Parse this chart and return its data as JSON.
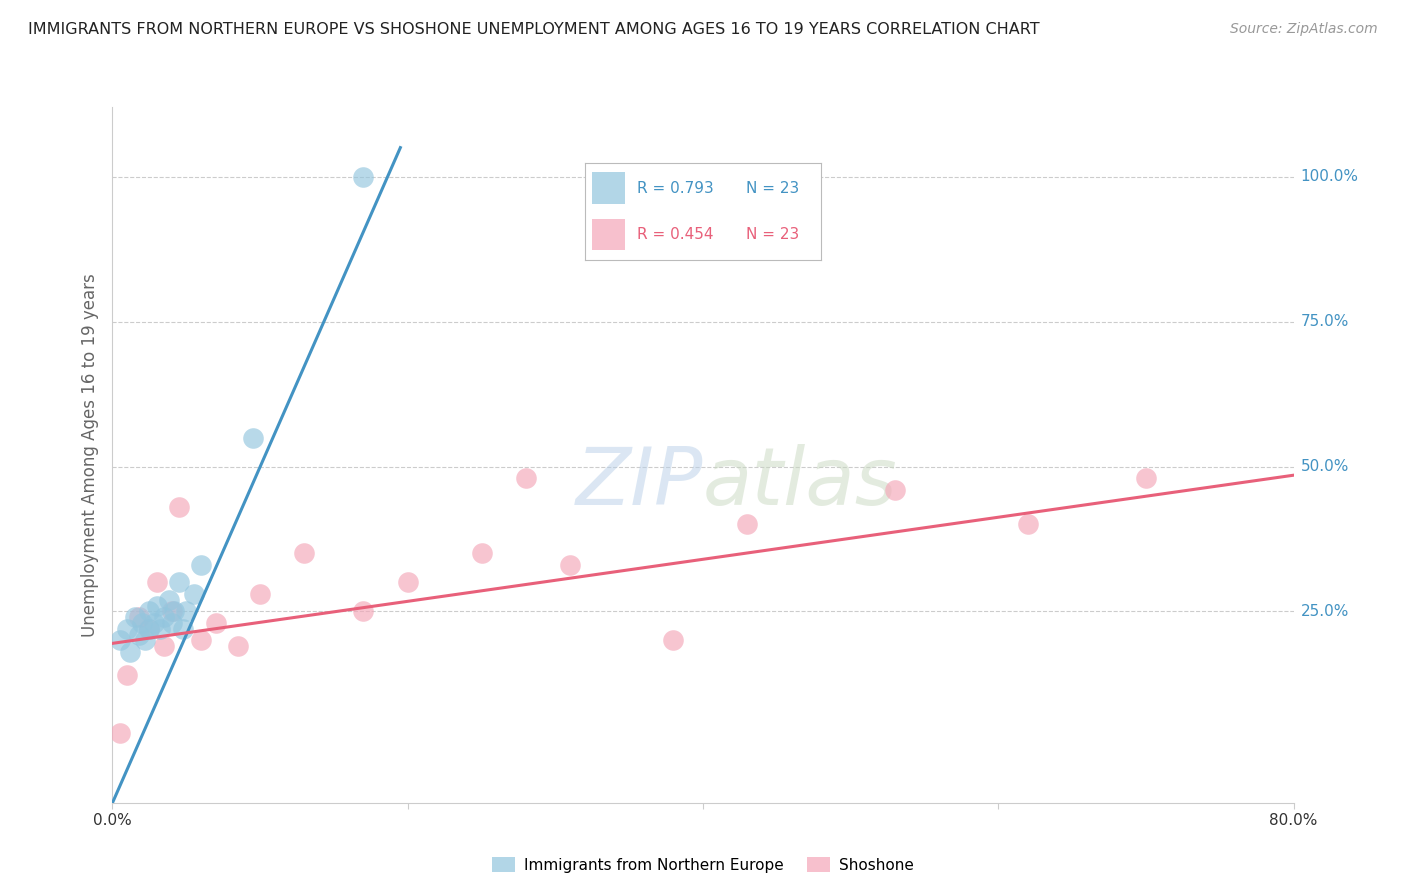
{
  "title": "IMMIGRANTS FROM NORTHERN EUROPE VS SHOSHONE UNEMPLOYMENT AMONG AGES 16 TO 19 YEARS CORRELATION CHART",
  "source": "Source: ZipAtlas.com",
  "ylabel": "Unemployment Among Ages 16 to 19 years",
  "xlim": [
    0.0,
    0.8
  ],
  "ylim": [
    -0.08,
    1.12
  ],
  "xticks": [
    0.0,
    0.2,
    0.4,
    0.6,
    0.8
  ],
  "xtick_labels": [
    "0.0%",
    "",
    "",
    "",
    "80.0%"
  ],
  "ytick_labels_right": [
    "100.0%",
    "75.0%",
    "50.0%",
    "25.0%"
  ],
  "ytick_positions_right": [
    1.0,
    0.75,
    0.5,
    0.25
  ],
  "watermark": "ZIPatlas",
  "legend_blue_r": "R = 0.793",
  "legend_blue_n": "N = 23",
  "legend_pink_r": "R = 0.454",
  "legend_pink_n": "N = 23",
  "blue_color": "#92c5de",
  "pink_color": "#f4a6b8",
  "blue_line_color": "#4393c3",
  "pink_line_color": "#e8607a",
  "blue_scatter_x": [
    0.005,
    0.01,
    0.012,
    0.015,
    0.018,
    0.02,
    0.022,
    0.025,
    0.025,
    0.028,
    0.03,
    0.032,
    0.035,
    0.038,
    0.04,
    0.042,
    0.045,
    0.048,
    0.05,
    0.055,
    0.06,
    0.095,
    0.17
  ],
  "blue_scatter_y": [
    0.2,
    0.22,
    0.18,
    0.24,
    0.21,
    0.23,
    0.2,
    0.25,
    0.22,
    0.23,
    0.26,
    0.22,
    0.24,
    0.27,
    0.23,
    0.25,
    0.3,
    0.22,
    0.25,
    0.28,
    0.33,
    0.55,
    1.0
  ],
  "pink_scatter_x": [
    0.005,
    0.01,
    0.018,
    0.025,
    0.03,
    0.035,
    0.04,
    0.045,
    0.06,
    0.07,
    0.085,
    0.1,
    0.13,
    0.17,
    0.2,
    0.25,
    0.28,
    0.31,
    0.38,
    0.43,
    0.53,
    0.62,
    0.7
  ],
  "pink_scatter_y": [
    0.04,
    0.14,
    0.24,
    0.22,
    0.3,
    0.19,
    0.25,
    0.43,
    0.2,
    0.23,
    0.19,
    0.28,
    0.35,
    0.25,
    0.3,
    0.35,
    0.48,
    0.33,
    0.2,
    0.4,
    0.46,
    0.4,
    0.48
  ],
  "blue_line_x": [
    0.0,
    0.195
  ],
  "blue_line_y": [
    -0.08,
    1.05
  ],
  "pink_line_x": [
    0.0,
    0.8
  ],
  "pink_line_y": [
    0.195,
    0.485
  ],
  "background_color": "#ffffff",
  "grid_color": "#cccccc"
}
